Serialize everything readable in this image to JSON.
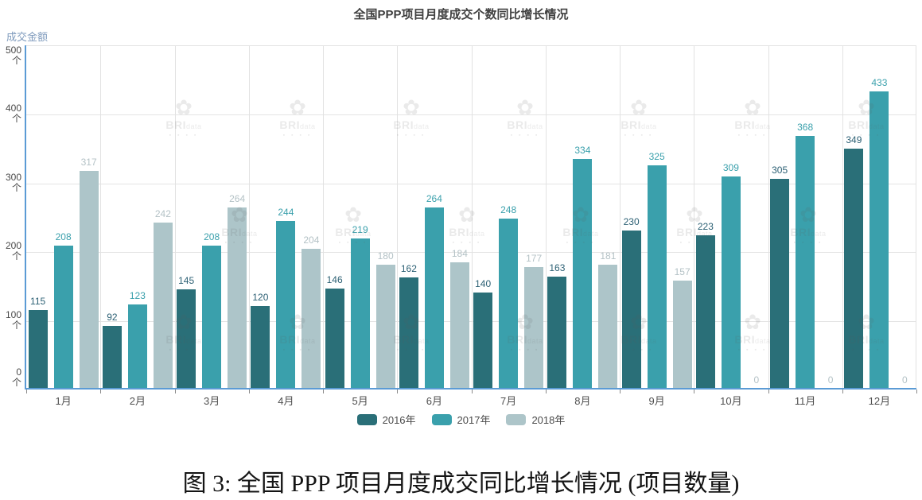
{
  "chart_data": {
    "type": "bar",
    "title": "全国PPP项目月度成交个数同比增长情况",
    "ylabel": "成交金额",
    "y_unit": "个",
    "ylim": [
      0,
      500
    ],
    "y_ticks": [
      0,
      100,
      200,
      300,
      400,
      500
    ],
    "grid": true,
    "legend_position": "bottom",
    "categories": [
      "1月",
      "2月",
      "3月",
      "4月",
      "5月",
      "6月",
      "7月",
      "8月",
      "9月",
      "10月",
      "11月",
      "12月"
    ],
    "series": [
      {
        "name": "2016年",
        "color": "#2a6f78",
        "label_color": "#2c6074",
        "values": [
          115,
          92,
          145,
          120,
          146,
          162,
          140,
          163,
          230,
          223,
          305,
          349
        ]
      },
      {
        "name": "2017年",
        "color": "#3aa0ac",
        "label_color": "#3aa0ac",
        "values": [
          208,
          123,
          208,
          244,
          219,
          264,
          248,
          334,
          325,
          309,
          368,
          433
        ]
      },
      {
        "name": "2018年",
        "color": "#adc5c9",
        "label_color": "#b4c2c6",
        "values": [
          317,
          242,
          264,
          204,
          180,
          184,
          177,
          181,
          157,
          0,
          0,
          0
        ]
      }
    ]
  },
  "watermark": {
    "flower_icon": "✿",
    "brand": "BRI",
    "suffix": "data",
    "blocks": "▪ ▪ ▪ ▪"
  },
  "caption": "图 3: 全国 PPP 项目月度成交同比增长情况 (项目数量)",
  "colors": {
    "axis_blue": "#5b9bd5",
    "gridline": "#e4e4e4",
    "title_text": "#404040",
    "axis_text": "#4a4a4a",
    "y_title_text": "#7f9bbd"
  }
}
